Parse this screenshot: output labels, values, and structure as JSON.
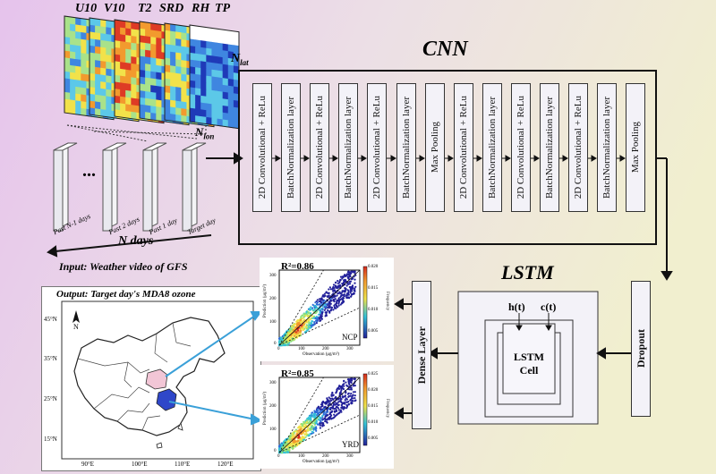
{
  "input_vars": [
    "U10",
    "V10",
    "T2",
    "SRD",
    "RH",
    "TP"
  ],
  "axis": {
    "nlat": "N",
    "nlat_sub": "lat",
    "nlon": "N",
    "nlon_sub": "lon"
  },
  "days": {
    "ellipsis": "...",
    "labels": [
      "Past N-1 days",
      "Past 2 days",
      "Past 1 day",
      "Target day"
    ],
    "n_days": "N days"
  },
  "input_caption": "Input: Weather video of GFS",
  "cnn": {
    "title": "CNN",
    "layers": [
      "2D Convolutional + ReLu",
      "BatchNormalization layer",
      "2D Convolutional + ReLu",
      "BatchNormalization layer",
      "2D Convolutional + ReLu",
      "BatchNormalization layer",
      "Max Pooling",
      "2D Convolutional + ReLu",
      "BatchNormalization layer",
      "2D Convolutional + ReLu",
      "BatchNormalization layer",
      "2D Convolutional + ReLu",
      "BatchNormalization layer",
      "Max Pooling"
    ]
  },
  "lstm": {
    "title": "LSTM",
    "h": "h(t)",
    "c": "c(t)",
    "cell": "LSTM\nCell"
  },
  "dropout": "Dropout",
  "dense": "Dense Layer",
  "output_caption": "Output: Target day's MDA8 ozone",
  "map": {
    "lat_labels": [
      "45°N",
      "35°N",
      "25°N",
      "15°N"
    ],
    "lon_labels": [
      "90°E",
      "100°E",
      "110°E",
      "120°E"
    ],
    "north": "N"
  },
  "scatter_ncp": {
    "r2": "R²=0.86",
    "region": "NCP",
    "xlabel": "Observation (μg/m³)",
    "ylabel": "Prediction (μg/m³)",
    "cbar_label": "Frequency",
    "xticks": [
      "0",
      "100",
      "200",
      "300"
    ],
    "yticks": [
      "0",
      "100",
      "200",
      "300"
    ],
    "cbar_ticks": [
      "0.020",
      "0.015",
      "0.010",
      "0.005"
    ]
  },
  "scatter_yrd": {
    "r2": "R²=0.85",
    "region": "YRD",
    "xlabel": "Observation (μg/m³)",
    "ylabel": "Prediction (μg/m³)",
    "cbar_label": "Frequency",
    "xticks": [
      "0",
      "100",
      "200",
      "300"
    ],
    "yticks": [
      "0",
      "100",
      "200",
      "300"
    ],
    "cbar_ticks": [
      "0.025",
      "0.020",
      "0.015",
      "0.010",
      "0.005"
    ]
  },
  "colors": {
    "bg_left": "#e6c3ec",
    "bg_right": "#f1efcf",
    "box": "#f3f2f8",
    "map_hi": "#2f47c9"
  }
}
